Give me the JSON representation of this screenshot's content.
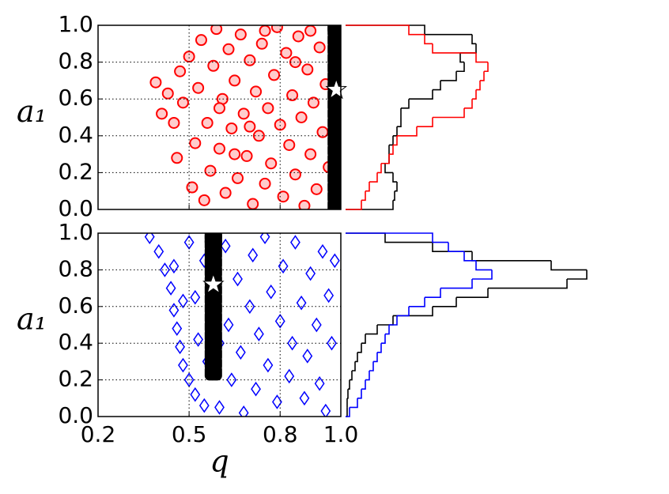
{
  "chart_data": [
    {
      "type": "scatter",
      "ylabel": "a₁",
      "xlim": [
        0.2,
        1.0
      ],
      "ylim": [
        0,
        1
      ],
      "xticks": [
        0.2,
        0.5,
        0.8,
        {
          "value": 1,
          "label": "1.0"
        }
      ],
      "xticklabels": false,
      "yticks": [
        {
          "value": 0,
          "label": "0.0"
        },
        0.2,
        0.4,
        0.6,
        0.8,
        {
          "value": 1,
          "label": "1.0"
        }
      ],
      "grid": true,
      "series": [
        {
          "color": "#ff0000",
          "marker": "circle",
          "x": [
            0.39,
            0.41,
            0.43,
            0.45,
            0.46,
            0.48,
            0.47,
            0.5,
            0.51,
            0.52,
            0.53,
            0.54,
            0.55,
            0.56,
            0.57,
            0.58,
            0.59,
            0.6,
            0.61,
            0.62,
            0.63,
            0.64,
            0.65,
            0.66,
            0.67,
            0.68,
            0.69,
            0.7,
            0.71,
            0.72,
            0.73,
            0.74,
            0.75,
            0.76,
            0.77,
            0.78,
            0.79,
            0.8,
            0.81,
            0.82,
            0.83,
            0.84,
            0.85,
            0.86,
            0.87,
            0.88,
            0.89,
            0.9,
            0.91,
            0.92,
            0.93,
            0.94,
            0.95,
            0.96,
            0.6,
            0.7,
            0.65,
            0.85,
            0.75,
            0.9
          ],
          "values": [
            0.69,
            0.52,
            0.63,
            0.47,
            0.28,
            0.58,
            0.75,
            0.83,
            0.12,
            0.36,
            0.66,
            0.92,
            0.05,
            0.47,
            0.21,
            0.78,
            0.98,
            0.33,
            0.6,
            0.09,
            0.87,
            0.44,
            0.7,
            0.17,
            0.95,
            0.52,
            0.29,
            0.81,
            0.03,
            0.64,
            0.4,
            0.9,
            0.14,
            0.55,
            0.25,
            0.73,
            0.99,
            0.46,
            0.07,
            0.85,
            0.35,
            0.62,
            0.19,
            0.94,
            0.5,
            0.02,
            0.76,
            0.3,
            0.58,
            0.11,
            0.88,
            0.42,
            0.68,
            0.23,
            0.55,
            0.45,
            0.3,
            0.8,
            0.97,
            0.97
          ]
        },
        {
          "color": "#000000",
          "marker": "column",
          "x": [
            0.985,
            0.985,
            0.985,
            0.985,
            0.985,
            0.985,
            0.985,
            0.985,
            0.985,
            0.985,
            0.985,
            0.985,
            0.985,
            0.985,
            0.985,
            0.985,
            0.985,
            0.985,
            0.985,
            0.985,
            0.985
          ],
          "values": [
            0.02,
            0.07,
            0.12,
            0.17,
            0.22,
            0.27,
            0.32,
            0.37,
            0.42,
            0.47,
            0.52,
            0.57,
            0.62,
            0.67,
            0.72,
            0.77,
            0.82,
            0.87,
            0.92,
            0.97,
            0.99
          ]
        },
        {
          "color": "#ffffff",
          "marker": "star",
          "x": [
            0.985
          ],
          "values": [
            0.65
          ]
        }
      ]
    },
    {
      "type": "histogram",
      "orientation": "horizontal",
      "ylim": [
        0,
        1
      ],
      "xlim": [
        0,
        320
      ],
      "bins": [
        0,
        0.05,
        0.1,
        0.15,
        0.2,
        0.25,
        0.3,
        0.35,
        0.4,
        0.45,
        0.5,
        0.55,
        0.6,
        0.65,
        0.7,
        0.75,
        0.8,
        0.85,
        0.9,
        0.95,
        1.0
      ],
      "series": [
        {
          "color": "#000000",
          "values": [
            60,
            62,
            65,
            60,
            50,
            55,
            55,
            60,
            65,
            70,
            70,
            80,
            110,
            120,
            140,
            150,
            145,
            165,
            160,
            100
          ]
        },
        {
          "color": "#ff0000",
          "values": [
            20,
            25,
            30,
            40,
            45,
            55,
            60,
            65,
            90,
            110,
            150,
            160,
            165,
            170,
            175,
            180,
            165,
            110,
            100,
            80
          ]
        }
      ]
    },
    {
      "type": "scatter",
      "xlabel": "q",
      "ylabel": "a₁",
      "xlim": [
        0.2,
        1.0
      ],
      "ylim": [
        0,
        1
      ],
      "xticks": [
        0.2,
        0.5,
        0.8,
        {
          "value": 1,
          "label": "1.0"
        }
      ],
      "xticklabels": true,
      "yticks": [
        {
          "value": 0,
          "label": "0.0"
        },
        0.2,
        0.4,
        0.6,
        0.8,
        {
          "value": 1,
          "label": "1.0"
        }
      ],
      "grid": true,
      "series": [
        {
          "color": "#0000ff",
          "marker": "diamond",
          "x": [
            0.37,
            0.4,
            0.42,
            0.44,
            0.45,
            0.46,
            0.47,
            0.48,
            0.5,
            0.52,
            0.55,
            0.5,
            0.52,
            0.53,
            0.55,
            0.56,
            0.6,
            0.62,
            0.63,
            0.64,
            0.66,
            0.67,
            0.68,
            0.7,
            0.71,
            0.72,
            0.73,
            0.75,
            0.76,
            0.77,
            0.79,
            0.8,
            0.81,
            0.83,
            0.84,
            0.85,
            0.87,
            0.88,
            0.89,
            0.9,
            0.92,
            0.93,
            0.94,
            0.95,
            0.96,
            0.97,
            0.98,
            0.45,
            0.48,
            0.6
          ],
          "values": [
            0.98,
            0.9,
            0.8,
            0.7,
            0.58,
            0.48,
            0.38,
            0.28,
            0.2,
            0.12,
            0.06,
            0.95,
            0.65,
            0.42,
            0.85,
            0.3,
            0.05,
            0.93,
            0.5,
            0.2,
            0.75,
            0.35,
            0.02,
            0.6,
            0.88,
            0.15,
            0.45,
            0.98,
            0.28,
            0.68,
            0.08,
            0.52,
            0.82,
            0.22,
            0.4,
            0.95,
            0.62,
            0.1,
            0.33,
            0.78,
            0.5,
            0.18,
            0.9,
            0.03,
            0.66,
            0.4,
            0.85,
            0.82,
            0.63,
            0.4
          ]
        },
        {
          "color": "#000000",
          "marker": "column",
          "x": [
            0.58,
            0.58,
            0.58,
            0.58,
            0.58,
            0.58,
            0.58,
            0.58,
            0.58,
            0.58,
            0.58,
            0.58,
            0.58,
            0.58,
            0.58,
            0.58,
            0.58
          ],
          "values": [
            0.24,
            0.29,
            0.34,
            0.39,
            0.44,
            0.49,
            0.54,
            0.59,
            0.64,
            0.69,
            0.74,
            0.79,
            0.84,
            0.89,
            0.94,
            0.97,
            0.99
          ]
        },
        {
          "color": "#ffffff",
          "marker": "star",
          "x": [
            0.58
          ],
          "values": [
            0.72
          ]
        }
      ]
    },
    {
      "type": "histogram",
      "orientation": "horizontal",
      "ylim": [
        0,
        1
      ],
      "xlim": [
        0,
        320
      ],
      "bins": [
        0,
        0.05,
        0.1,
        0.15,
        0.2,
        0.25,
        0.3,
        0.35,
        0.4,
        0.45,
        0.5,
        0.55,
        0.6,
        0.65,
        0.7,
        0.75,
        0.8,
        0.85,
        0.9,
        0.95,
        1.0
      ],
      "series": [
        {
          "color": "#000000",
          "values": [
            2,
            2,
            3,
            5,
            8,
            12,
            15,
            20,
            25,
            40,
            60,
            110,
            140,
            180,
            280,
            305,
            260,
            160,
            110,
            50
          ]
        },
        {
          "color": "#0000ff",
          "values": [
            5,
            15,
            20,
            25,
            30,
            35,
            40,
            45,
            50,
            55,
            65,
            80,
            100,
            120,
            160,
            185,
            165,
            150,
            130,
            110
          ]
        }
      ]
    }
  ]
}
